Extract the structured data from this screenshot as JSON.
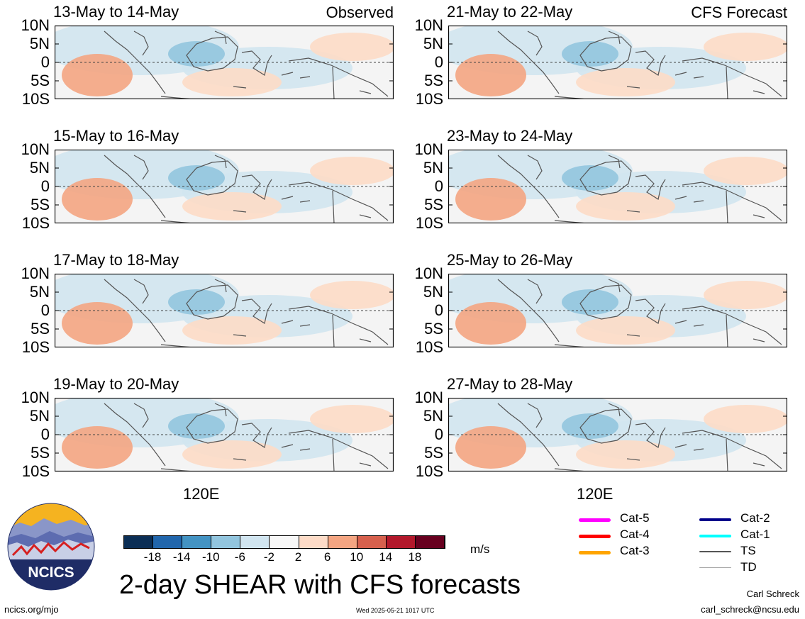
{
  "panels": [
    {
      "label": "13-May to 14-May",
      "source": "Observed",
      "side": "left",
      "row": 0
    },
    {
      "label": "15-May to 16-May",
      "source": "",
      "side": "left",
      "row": 1
    },
    {
      "label": "17-May to 18-May",
      "source": "",
      "side": "left",
      "row": 2
    },
    {
      "label": "19-May to 20-May",
      "source": "",
      "side": "left",
      "row": 3
    },
    {
      "label": "21-May to 22-May",
      "source": "CFS Forecast",
      "side": "right",
      "row": 0
    },
    {
      "label": "23-May to 24-May",
      "source": "",
      "side": "right",
      "row": 1
    },
    {
      "label": "25-May to 26-May",
      "source": "",
      "side": "right",
      "row": 2
    },
    {
      "label": "27-May to 28-May",
      "source": "",
      "side": "right",
      "row": 3
    }
  ],
  "axes": {
    "lat_ticks": [
      "10N",
      "5N",
      "0",
      "5S",
      "10S"
    ],
    "lon_tick": "120E"
  },
  "colorbar": {
    "ticks": [
      "-18",
      "-14",
      "-10",
      "-6",
      "-2",
      "2",
      "6",
      "10",
      "14",
      "18"
    ],
    "colors": [
      "#0b2e55",
      "#2166ac",
      "#4393c3",
      "#92c5de",
      "#d1e5f0",
      "#f7f7f7",
      "#fddbc7",
      "#f4a582",
      "#d6604d",
      "#b2182b",
      "#67001f"
    ],
    "units": "m/s"
  },
  "legend": [
    {
      "label": "Cat-5",
      "color": "#ff00ff",
      "width": 5
    },
    {
      "label": "Cat-4",
      "color": "#ff0000",
      "width": 5
    },
    {
      "label": "Cat-3",
      "color": "#ffa500",
      "width": 5
    },
    {
      "label": "Cat-2",
      "color": "#00008b",
      "width": 4
    },
    {
      "label": "Cat-1",
      "color": "#00ffff",
      "width": 4
    },
    {
      "label": "TS",
      "color": "#555555",
      "width": 2
    },
    {
      "label": "TD",
      "color": "#aaaaaa",
      "width": 1
    }
  ],
  "logo": {
    "text": "NCICS"
  },
  "title": "2-day SHEAR with CFS forecasts",
  "footer": {
    "url": "ncics.org/mjo",
    "timestamp": "Wed 2025-05-21 1017 UTC",
    "author": "Carl Schreck",
    "email": "carl_schreck@ncsu.edu"
  }
}
